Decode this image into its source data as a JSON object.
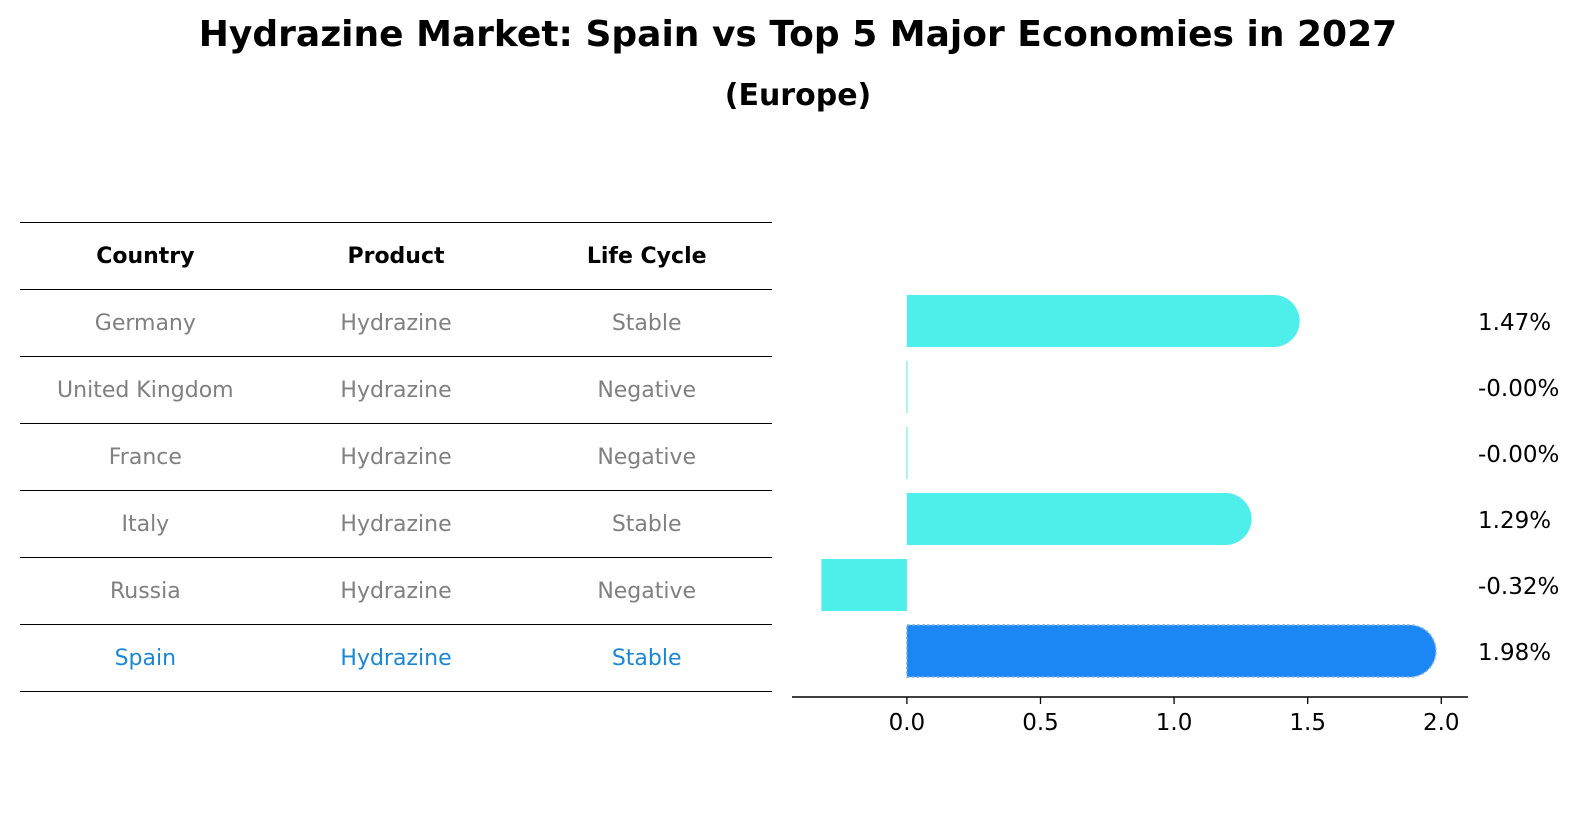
{
  "chart_data": {
    "type": "bar",
    "orientation": "horizontal",
    "title": "Hydrazine Market: Spain vs Top 5 Major Economies in 2027",
    "subtitle": "(Europe)",
    "table": {
      "columns": [
        "Country",
        "Product",
        "Life Cycle"
      ],
      "rows": [
        [
          "Germany",
          "Hydrazine",
          "Stable"
        ],
        [
          "United Kingdom",
          "Hydrazine",
          "Negative"
        ],
        [
          "France",
          "Hydrazine",
          "Negative"
        ],
        [
          "Italy",
          "Hydrazine",
          "Stable"
        ],
        [
          "Russia",
          "Hydrazine",
          "Negative"
        ],
        [
          "Spain",
          "Hydrazine",
          "Stable"
        ]
      ],
      "highlight_row": "Spain"
    },
    "categories": [
      "Germany",
      "United Kingdom",
      "France",
      "Italy",
      "Russia",
      "Spain"
    ],
    "values": [
      1.47,
      -0.0,
      -0.0,
      1.29,
      -0.32,
      1.98
    ],
    "value_labels": [
      "1.47%",
      "-0.00%",
      "-0.00%",
      "1.29%",
      "-0.32%",
      "1.98%"
    ],
    "xlim": [
      -0.43,
      2.1
    ],
    "xticks": [
      "0.0",
      "0.5",
      "1.0",
      "1.5",
      "2.0"
    ],
    "xtick_values": [
      0.0,
      0.5,
      1.0,
      1.5,
      2.0
    ],
    "grid": false,
    "colors": {
      "default": "#4eeeea",
      "highlight": "#1a87f4",
      "highlight_text": "#1a87d6",
      "muted_text": "#808080"
    }
  }
}
